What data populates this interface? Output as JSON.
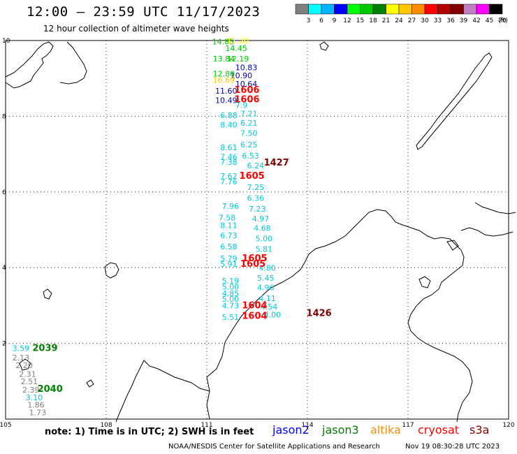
{
  "title": "12:00 – 23:59 UTC 11/17/2023",
  "subtitle": "12 hour collection of altimeter wave heights",
  "colorbar": {
    "unit": "(ft)",
    "colors": [
      "#808080",
      "#00ffff",
      "#00b4ff",
      "#0000ff",
      "#00ff00",
      "#00c800",
      "#008000",
      "#ffff00",
      "#ffc800",
      "#ff8c00",
      "#ff0000",
      "#b40000",
      "#800000",
      "#c080c0",
      "#ff00ff",
      "#000000"
    ],
    "labels": [
      "3",
      "6",
      "9",
      "12",
      "15",
      "18",
      "21",
      "24",
      "27",
      "30",
      "33",
      "36",
      "39",
      "42",
      "45",
      "70"
    ]
  },
  "axes": {
    "lon_ticks": [
      "105",
      "108",
      "111",
      "114",
      "117",
      "120"
    ],
    "lat_ticks": [
      "10",
      "8",
      "6",
      "4",
      "2"
    ],
    "lon_range": [
      105,
      120
    ],
    "lat_range": [
      0,
      10
    ]
  },
  "colors": {
    "jason2": "#0000ff",
    "jason3": "#008000",
    "altika": "#ff8c00",
    "cryosat": "#ff0000",
    "s3a": "#800000",
    "gray": "#808080",
    "cyan": "#00c8dc",
    "navy": "#0000b4"
  },
  "observations": [
    {
      "lon": 111.16,
      "lat": 9.9,
      "t": "14.85",
      "c": "#00c800"
    },
    {
      "lon": 111.6,
      "lat": 9.93,
      "t": "11.20",
      "c": "#ffff00"
    },
    {
      "lon": 111.55,
      "lat": 9.72,
      "t": "14.45",
      "c": "#00c800"
    },
    {
      "lon": 111.18,
      "lat": 9.45,
      "t": "13.84",
      "c": "#00c800"
    },
    {
      "lon": 111.6,
      "lat": 9.45,
      "t": "12.19",
      "c": "#00c800"
    },
    {
      "lon": 111.85,
      "lat": 9.22,
      "t": "10.83",
      "c": "#0000b4"
    },
    {
      "lon": 111.18,
      "lat": 9.05,
      "t": "12.80",
      "c": "#00c800"
    },
    {
      "lon": 111.7,
      "lat": 9.0,
      "t": "10.90",
      "c": "#0000b4"
    },
    {
      "lon": 111.18,
      "lat": 8.88,
      "t": "16.69",
      "c": "#ffc800"
    },
    {
      "lon": 111.85,
      "lat": 8.78,
      "t": "10.64",
      "c": "#0000b4"
    },
    {
      "lon": 111.25,
      "lat": 8.6,
      "t": "11.60",
      "c": "#0000b4"
    },
    {
      "lon": 111.25,
      "lat": 8.35,
      "t": "10.49",
      "c": "#0000b4"
    },
    {
      "lon": 111.85,
      "lat": 8.22,
      "t": "7.9",
      "c": "#00c8dc"
    },
    {
      "lon": 111.4,
      "lat": 7.95,
      "t": "6.88",
      "c": "#00c8dc"
    },
    {
      "lon": 112.0,
      "lat": 8.0,
      "t": "7.21",
      "c": "#00c8dc"
    },
    {
      "lon": 111.4,
      "lat": 7.7,
      "t": "8.40",
      "c": "#00c8dc"
    },
    {
      "lon": 112.0,
      "lat": 7.75,
      "t": "6.21",
      "c": "#00c8dc"
    },
    {
      "lon": 112.0,
      "lat": 7.48,
      "t": "7.50",
      "c": "#00c8dc"
    },
    {
      "lon": 111.4,
      "lat": 7.1,
      "t": "8.61",
      "c": "#00c8dc"
    },
    {
      "lon": 112.0,
      "lat": 7.18,
      "t": "6.25",
      "c": "#00c8dc"
    },
    {
      "lon": 111.4,
      "lat": 6.85,
      "t": "7.46",
      "c": "#00c8dc"
    },
    {
      "lon": 112.05,
      "lat": 6.88,
      "t": "6.53",
      "c": "#00c8dc"
    },
    {
      "lon": 111.4,
      "lat": 6.72,
      "t": "7.38",
      "c": "#00c8dc"
    },
    {
      "lon": 112.2,
      "lat": 6.62,
      "t": "6.24",
      "c": "#00c8dc"
    },
    {
      "lon": 111.4,
      "lat": 6.35,
      "t": "7.62",
      "c": "#00c8dc"
    },
    {
      "lon": 111.4,
      "lat": 6.2,
      "t": "7.76",
      "c": "#00c8dc"
    },
    {
      "lon": 112.2,
      "lat": 6.05,
      "t": "7.25",
      "c": "#00c8dc"
    },
    {
      "lon": 112.2,
      "lat": 5.77,
      "t": "6.36",
      "c": "#00c8dc"
    },
    {
      "lon": 111.45,
      "lat": 5.55,
      "t": "7.96",
      "c": "#00c8dc"
    },
    {
      "lon": 112.25,
      "lat": 5.48,
      "t": "7.23",
      "c": "#00c8dc"
    },
    {
      "lon": 111.35,
      "lat": 5.25,
      "t": "7.58",
      "c": "#00c8dc"
    },
    {
      "lon": 112.35,
      "lat": 5.22,
      "t": "4.97",
      "c": "#00c8dc"
    },
    {
      "lon": 111.4,
      "lat": 5.05,
      "t": "8.11",
      "c": "#00c8dc"
    },
    {
      "lon": 112.4,
      "lat": 4.97,
      "t": "4.68",
      "c": "#00c8dc"
    },
    {
      "lon": 111.4,
      "lat": 4.78,
      "t": "6.73",
      "c": "#00c8dc"
    },
    {
      "lon": 112.45,
      "lat": 4.7,
      "t": "5.00",
      "c": "#00c8dc"
    },
    {
      "lon": 111.4,
      "lat": 4.48,
      "t": "6.58",
      "c": "#00c8dc"
    },
    {
      "lon": 112.45,
      "lat": 4.42,
      "t": "5.81",
      "c": "#00c8dc"
    },
    {
      "lon": 111.4,
      "lat": 4.17,
      "t": "5.79",
      "c": "#00c8dc"
    },
    {
      "lon": 111.4,
      "lat": 4.02,
      "t": "5.91",
      "c": "#00c8dc"
    },
    {
      "lon": 112.55,
      "lat": 3.92,
      "t": "4.80",
      "c": "#00c8dc"
    },
    {
      "lon": 112.5,
      "lat": 3.65,
      "t": "5.45",
      "c": "#00c8dc"
    },
    {
      "lon": 111.45,
      "lat": 3.58,
      "t": "5.19",
      "c": "#00c8dc"
    },
    {
      "lon": 111.45,
      "lat": 3.42,
      "t": "5.00",
      "c": "#00c8dc"
    },
    {
      "lon": 112.5,
      "lat": 3.4,
      "t": "4.96",
      "c": "#00c8dc"
    },
    {
      "lon": 111.45,
      "lat": 3.25,
      "t": "4.85",
      "c": "#00c8dc"
    },
    {
      "lon": 111.45,
      "lat": 3.1,
      "t": "5.00",
      "c": "#00c8dc"
    },
    {
      "lon": 112.55,
      "lat": 3.12,
      "t": "4.11",
      "c": "#00c8dc"
    },
    {
      "lon": 111.45,
      "lat": 2.92,
      "t": "4.73",
      "c": "#00c8dc"
    },
    {
      "lon": 112.6,
      "lat": 2.9,
      "t": "4.54",
      "c": "#00c8dc"
    },
    {
      "lon": 111.45,
      "lat": 2.62,
      "t": "5.51",
      "c": "#00c8dc"
    },
    {
      "lon": 112.7,
      "lat": 2.68,
      "t": "4.00",
      "c": "#00c8dc"
    },
    {
      "lon": 105.2,
      "lat": 1.8,
      "t": "3.59",
      "c": "#00c8dc"
    },
    {
      "lon": 105.2,
      "lat": 1.55,
      "t": "2.13",
      "c": "#808080"
    },
    {
      "lon": 105.3,
      "lat": 1.35,
      "t": "2.20",
      "c": "#808080"
    },
    {
      "lon": 105.4,
      "lat": 1.12,
      "t": "2.31",
      "c": "#808080"
    },
    {
      "lon": 105.45,
      "lat": 0.92,
      "t": "2.51",
      "c": "#808080"
    },
    {
      "lon": 105.5,
      "lat": 0.7,
      "t": "2.39",
      "c": "#808080"
    },
    {
      "lon": 105.6,
      "lat": 0.5,
      "t": "3.10",
      "c": "#00c8dc"
    },
    {
      "lon": 105.65,
      "lat": 0.3,
      "t": "1.86",
      "c": "#808080"
    },
    {
      "lon": 105.7,
      "lat": 0.1,
      "t": "1.73",
      "c": "#808080"
    }
  ],
  "passes": [
    {
      "lon": 111.82,
      "lat": 8.62,
      "t": "1606",
      "c": "#ff0000"
    },
    {
      "lon": 111.82,
      "lat": 8.37,
      "t": "1606",
      "c": "#ff0000"
    },
    {
      "lon": 112.7,
      "lat": 6.7,
      "t": "1427",
      "c": "#800000"
    },
    {
      "lon": 111.97,
      "lat": 6.35,
      "t": "1605",
      "c": "#ff0000"
    },
    {
      "lon": 112.05,
      "lat": 4.17,
      "t": "1605",
      "c": "#ff0000"
    },
    {
      "lon": 112.0,
      "lat": 4.02,
      "t": "1605",
      "c": "#ff0000"
    },
    {
      "lon": 112.05,
      "lat": 2.92,
      "t": "1604",
      "c": "#ff0000"
    },
    {
      "lon": 112.05,
      "lat": 2.65,
      "t": "1604",
      "c": "#ff0000"
    },
    {
      "lon": 113.97,
      "lat": 2.72,
      "t": "1426",
      "c": "#800000"
    },
    {
      "lon": 105.8,
      "lat": 1.8,
      "t": "2039",
      "c": "#008000"
    },
    {
      "lon": 105.95,
      "lat": 0.72,
      "t": "2040",
      "c": "#008000"
    }
  ],
  "note": "note: 1) Time is in UTC; 2) SWH is in feet",
  "legend": {
    "jason2": "jason2",
    "jason3": "jason3",
    "altika": "altika",
    "cryosat": "cryosat",
    "s3a": "s3a"
  },
  "credit": "NOAA/NESDIS Center for Satellite Applications and Research",
  "timestamp": "Nov 19 08:30:28 UTC 2023"
}
